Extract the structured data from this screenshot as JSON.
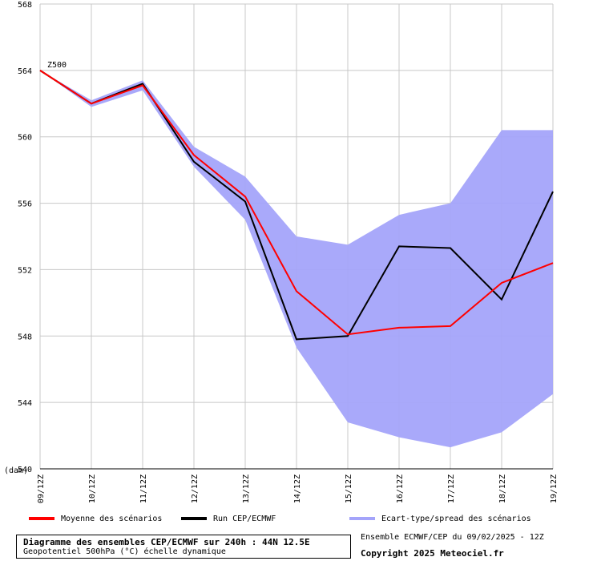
{
  "chart_data": {
    "type": "line",
    "series_label": "Z500",
    "y_unit": "(dam)",
    "x_ticks": [
      "09/12Z",
      "10/12Z",
      "11/12Z",
      "12/12Z",
      "13/12Z",
      "14/12Z",
      "15/12Z",
      "16/12Z",
      "17/12Z",
      "18/12Z",
      "19/12Z"
    ],
    "y_ticks": [
      540,
      544,
      548,
      552,
      556,
      560,
      564,
      568
    ],
    "ylim": [
      540,
      568
    ],
    "grid": true,
    "spread_upper": [
      564.0,
      562.2,
      563.4,
      559.4,
      557.6,
      554.0,
      553.5,
      555.3,
      556.0,
      560.4,
      560.4
    ],
    "spread_lower": [
      564.0,
      561.8,
      562.8,
      558.2,
      555.0,
      547.3,
      542.8,
      541.9,
      541.3,
      542.2,
      544.5
    ],
    "series": [
      {
        "name": "Moyenne des scénarios",
        "color": "#ff0000",
        "values": [
          564.0,
          562.0,
          563.1,
          558.9,
          556.4,
          550.7,
          548.1,
          548.5,
          548.6,
          551.2,
          552.4
        ]
      },
      {
        "name": "Run CEP/ECMWF",
        "color": "#000000",
        "values": [
          564.0,
          562.0,
          563.2,
          558.5,
          556.1,
          547.8,
          548.0,
          553.4,
          553.3,
          550.2,
          556.7
        ]
      }
    ],
    "spread_name": "Ecart-type/spread des scénarios",
    "spread_color": "#a4a4fa"
  },
  "footer": {
    "title": "Diagramme des ensembles CEP/ECMWF sur 240h : 44N 12.5E",
    "subtitle": "Geopotentiel 500hPa (°C) échelle dynamique",
    "run_info": "Ensemble ECMWF/CEP du 09/02/2025 - 12Z",
    "copyright": "Copyright 2025 Meteociel.fr"
  }
}
